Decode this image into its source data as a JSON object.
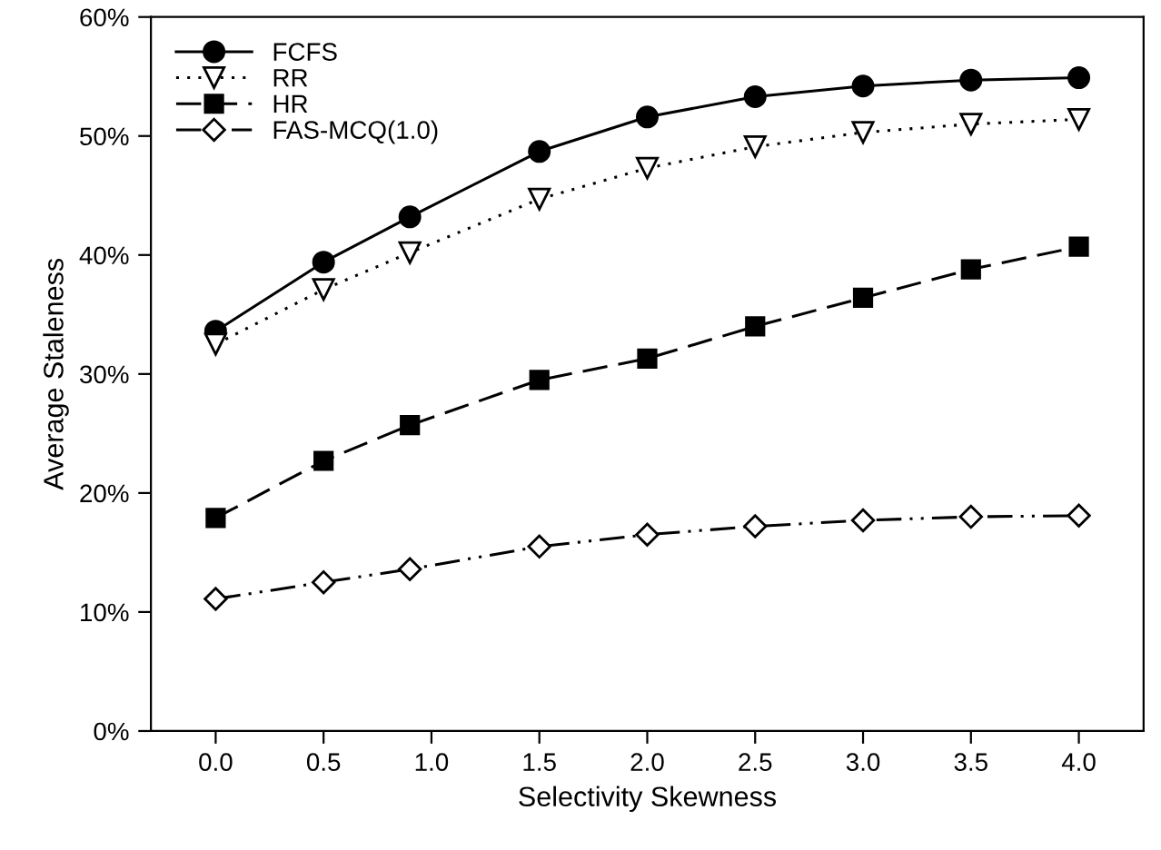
{
  "chart_data": {
    "type": "line",
    "xlabel": "Selectivity Skewness",
    "ylabel": "Average Staleness",
    "x": [
      0,
      0.5,
      0.9,
      1.5,
      2.0,
      2.5,
      3.0,
      3.5,
      4.0
    ],
    "xlim": [
      -0.3,
      4.3
    ],
    "xticks": [
      {
        "value": 0,
        "label": "0.0"
      },
      0.5,
      {
        "value": 1,
        "label": "1.0"
      },
      1.5,
      {
        "value": 2,
        "label": "2.0"
      },
      2.5,
      {
        "value": 3,
        "label": "3.0"
      },
      3.5,
      {
        "value": 4,
        "label": "4.0"
      }
    ],
    "ylim": [
      0,
      60
    ],
    "yticks": [
      {
        "value": 0,
        "label": "0%"
      },
      {
        "value": 10,
        "label": "10%"
      },
      {
        "value": 20,
        "label": "20%"
      },
      {
        "value": 30,
        "label": "30%"
      },
      {
        "value": 40,
        "label": "40%"
      },
      {
        "value": 50,
        "label": "50%"
      },
      {
        "value": 60,
        "label": "60%"
      }
    ],
    "grid": false,
    "legend": "top left",
    "series": [
      {
        "name": "FCFS",
        "color": "#000000",
        "marker": "circle",
        "line_style": "solid",
        "values": [
          33.6,
          39.4,
          43.2,
          48.7,
          51.6,
          53.3,
          54.2,
          54.7,
          54.9
        ]
      },
      {
        "name": "RR",
        "color": "#000000",
        "marker": "triangle_down",
        "line_style": "dotted",
        "values": [
          32.5,
          37.1,
          40.2,
          44.7,
          47.3,
          49.1,
          50.3,
          51.0,
          51.4
        ]
      },
      {
        "name": "HR",
        "color": "#000000",
        "marker": "square",
        "line_style": "dashed",
        "values": [
          17.9,
          22.7,
          25.7,
          29.5,
          31.3,
          34.0,
          36.4,
          38.8,
          40.7
        ]
      },
      {
        "name": "FAS-MCQ(1.0)",
        "color": "#000000",
        "marker": "diamond",
        "line_style": "dashdotdot",
        "values": [
          11.1,
          12.5,
          13.6,
          15.5,
          16.5,
          17.2,
          17.7,
          18.0,
          18.1
        ]
      }
    ]
  }
}
